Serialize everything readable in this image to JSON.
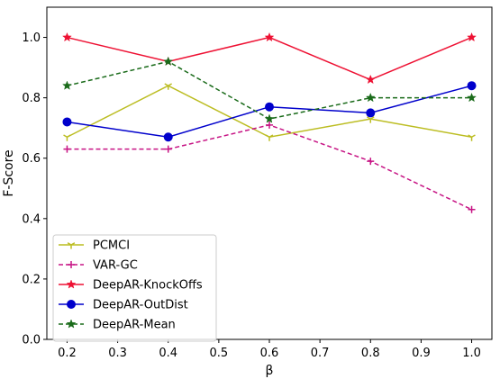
{
  "chart_data": {
    "type": "line",
    "title": "",
    "xlabel": "β",
    "ylabel": "F-Score",
    "xlim": [
      0.16,
      1.04
    ],
    "ylim": [
      0.0,
      1.1
    ],
    "xticks": [
      0.2,
      0.3,
      0.4,
      0.5,
      0.6,
      0.7,
      0.8,
      0.9,
      1.0
    ],
    "xtick_labels": [
      "0.2",
      "0.3",
      "0.4",
      "0.5",
      "0.6",
      "0.7",
      "0.8",
      "0.9",
      "1.0"
    ],
    "yticks": [
      0.0,
      0.2,
      0.4,
      0.6,
      0.8,
      1.0
    ],
    "ytick_labels": [
      "0.0",
      "0.2",
      "0.4",
      "0.6",
      "0.8",
      "1.0"
    ],
    "grid": false,
    "legend_position": "bottom-left",
    "x": [
      0.2,
      0.4,
      0.6,
      0.8,
      1.0
    ],
    "series": [
      {
        "name": "PCMCI",
        "values": [
          0.67,
          0.84,
          0.67,
          0.73,
          0.67
        ],
        "color": "#bcbd22",
        "dash": "solid",
        "marker": "tri"
      },
      {
        "name": "VAR-GC",
        "values": [
          0.63,
          0.63,
          0.71,
          0.59,
          0.43
        ],
        "color": "#c71585",
        "dash": "dashed",
        "marker": "plus"
      },
      {
        "name": "DeepAR-KnockOffs",
        "values": [
          1.0,
          0.92,
          1.0,
          0.86,
          1.0
        ],
        "color": "#ee1133",
        "dash": "solid",
        "marker": "star"
      },
      {
        "name": "DeepAR-OutDist",
        "values": [
          0.72,
          0.67,
          0.77,
          0.75,
          0.84
        ],
        "color": "#0000cc",
        "dash": "solid",
        "marker": "circle"
      },
      {
        "name": "DeepAR-Mean",
        "values": [
          0.84,
          0.92,
          0.73,
          0.8,
          0.8
        ],
        "color": "#1a6b1a",
        "dash": "dashed",
        "marker": "star"
      }
    ]
  }
}
